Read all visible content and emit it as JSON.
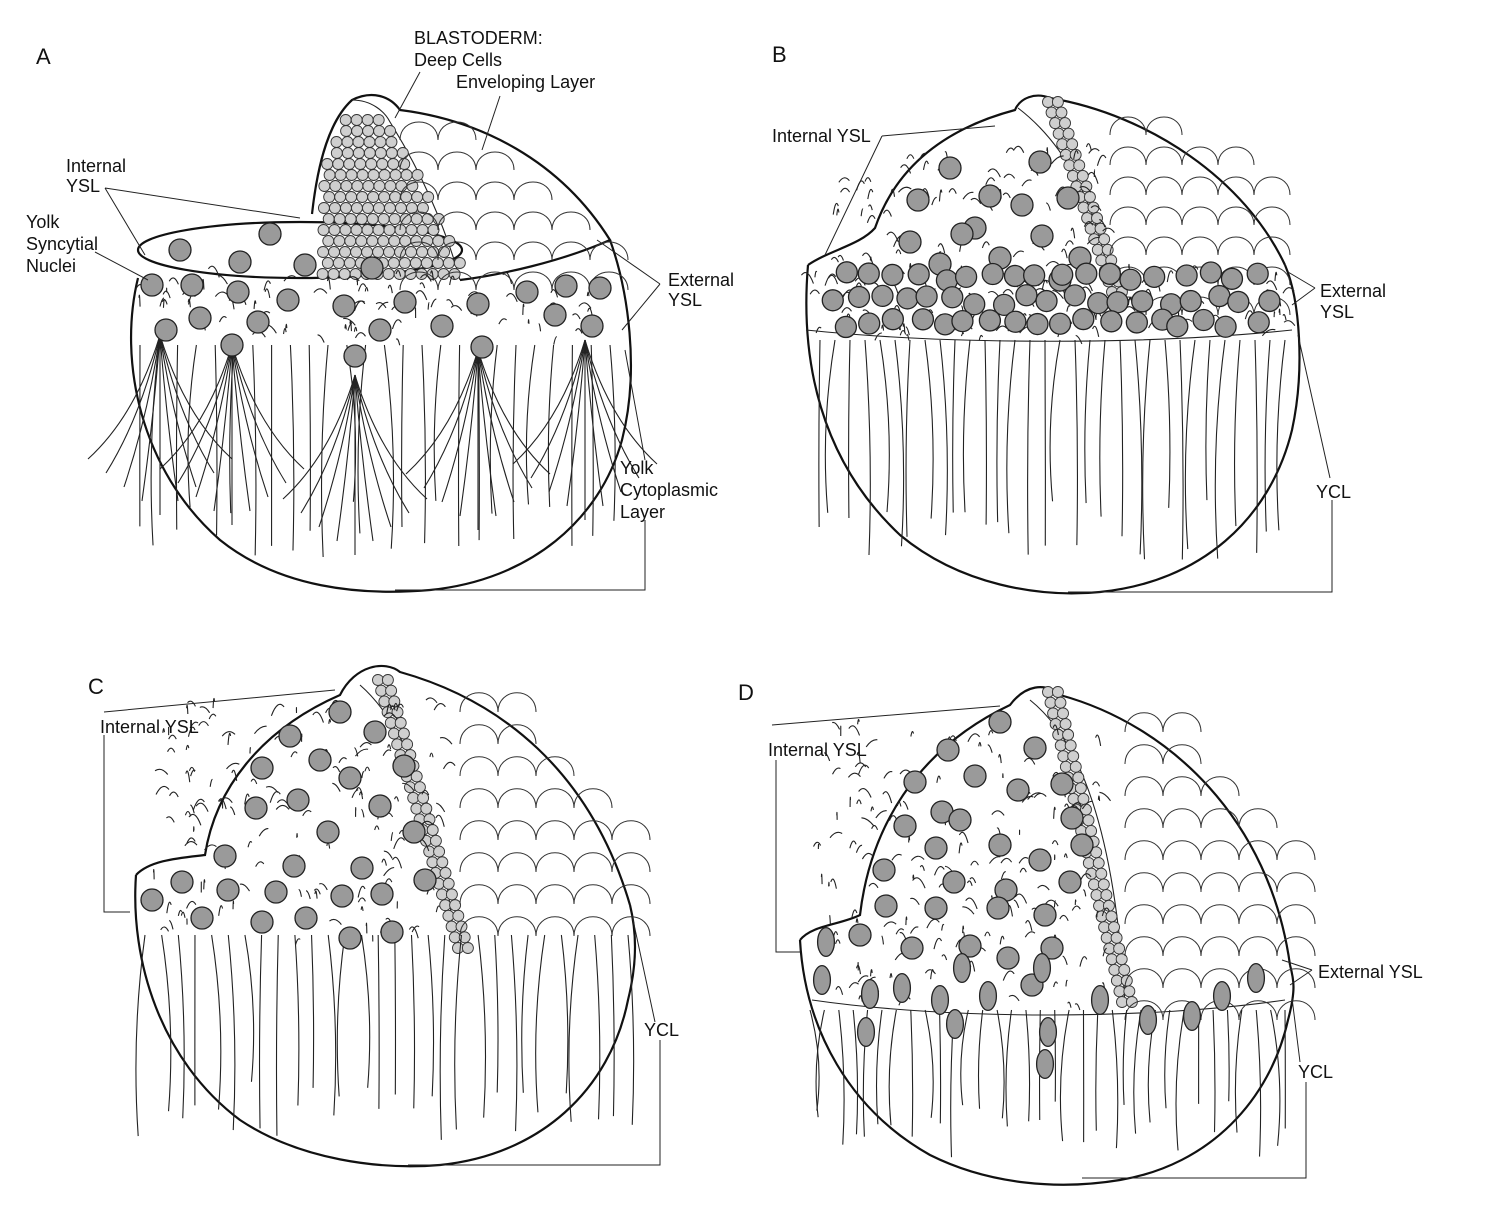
{
  "panels": [
    {
      "id": "A",
      "label": "A",
      "annotations": {
        "blastoderm": "BLASTODERM:",
        "deep_cells": "Deep Cells",
        "enveloping_layer": "Enveloping Layer",
        "internal_ysl_1": "Internal",
        "internal_ysl_2": "YSL",
        "yolk_nuclei_1": "Yolk",
        "yolk_nuclei_2": "Syncytial",
        "yolk_nuclei_3": "Nuclei",
        "external_ysl_1": "External",
        "external_ysl_2": "YSL",
        "ycl_1": "Yolk",
        "ycl_2": "Cytoplasmic",
        "ycl_3": "Layer"
      }
    },
    {
      "id": "B",
      "label": "B",
      "annotations": {
        "internal_ysl": "Internal YSL",
        "external_ysl_1": "External",
        "external_ysl_2": "YSL",
        "ycl": "YCL"
      }
    },
    {
      "id": "C",
      "label": "C",
      "annotations": {
        "internal_ysl": "Internal YSL",
        "ycl": "YCL"
      }
    },
    {
      "id": "D",
      "label": "D",
      "annotations": {
        "internal_ysl": "Internal YSL",
        "external_ysl": "External YSL",
        "ycl": "YCL"
      }
    }
  ],
  "colors": {
    "nucleus_fill": "#9a9a9a",
    "deep_cell_fill": "#cfcfcf",
    "line": "#111111",
    "background": "#ffffff"
  }
}
